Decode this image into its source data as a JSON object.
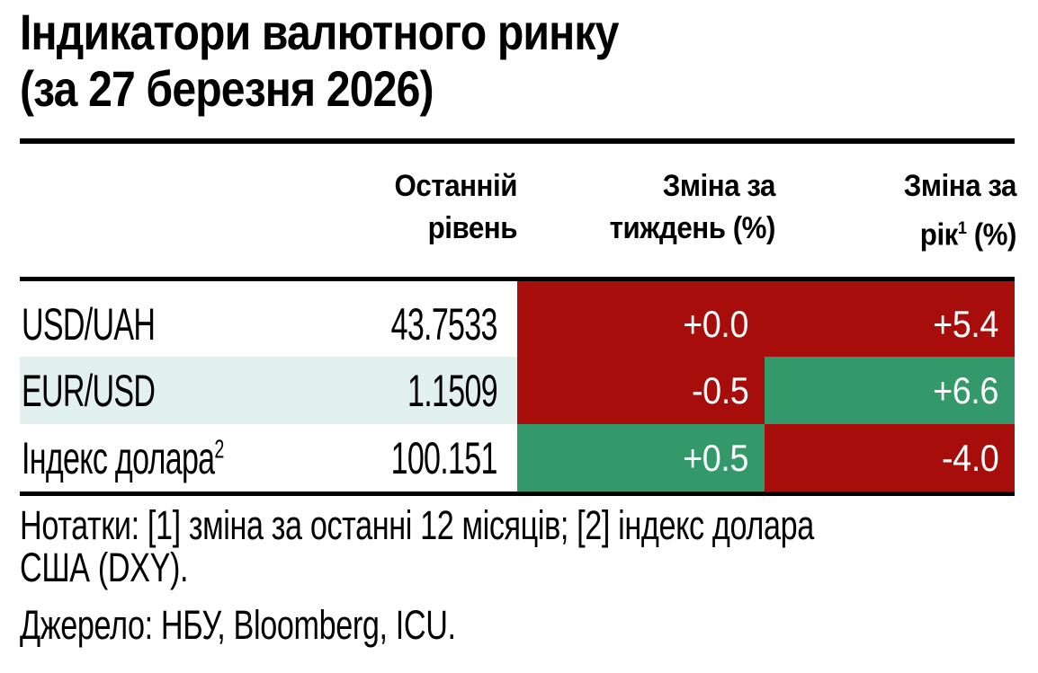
{
  "title": {
    "line1": "Індикатори валютного ринку",
    "line2": "(за 27 березня 2026)"
  },
  "header": {
    "level": {
      "line1": "Останній",
      "line2": "рівень"
    },
    "week": {
      "line1": "Зміна за",
      "line2": "тиждень (%)"
    },
    "year": {
      "line1": "Зміна за",
      "line2_base": "рік",
      "line2_sup": "1",
      "line2_rest": " (%)"
    }
  },
  "rows": [
    {
      "label": "USD/UAH",
      "label_sup": "",
      "level": "43.7533",
      "week": "+0.0",
      "year": "+5.4",
      "row_bg": "#ffffff",
      "week_bg": "#a60d0b",
      "year_bg": "#a60d0b"
    },
    {
      "label": "EUR/USD",
      "label_sup": "",
      "level": "1.1509",
      "week": "-0.5",
      "year": "+6.6",
      "row_bg": "#e3f1ee",
      "week_bg": "#a60d0b",
      "year_bg": "#34996a"
    },
    {
      "label": "Індекс долара",
      "label_sup": "2",
      "level": "100.151",
      "week": "+0.5",
      "year": "-4.0",
      "row_bg": "#ffffff",
      "week_bg": "#34996a",
      "year_bg": "#a60d0b"
    }
  ],
  "notes": {
    "line1": "Нотатки: [1] зміна за останні 12 місяців; [2] індекс долара",
    "line2": "США (DXY)."
  },
  "source": "Джерело: НБУ, Bloomberg, ICU.",
  "colors": {
    "negative_red": "#a60d0b",
    "positive_green": "#34996a",
    "highlight_row": "#e3f1ee",
    "rule_black": "#000000"
  },
  "chart_data": {
    "type": "table",
    "title": "Індикатори валютного ринку (за 27 березня 2026)",
    "columns": [
      "Останній рівень",
      "Зміна за тиждень (%)",
      "Зміна за рік [1] (%)"
    ],
    "rows": [
      {
        "indicator": "USD/UAH",
        "level": 43.7533,
        "week_change_pct": 0.0,
        "year_change_pct": 5.4
      },
      {
        "indicator": "EUR/USD",
        "level": 1.1509,
        "week_change_pct": -0.5,
        "year_change_pct": 6.6
      },
      {
        "indicator": "Індекс долара (DXY)",
        "level": 100.151,
        "week_change_pct": 0.5,
        "year_change_pct": -4.0
      }
    ],
    "notes": "Нотатки: [1] зміна за останні 12 місяців; [2] індекс долара США (DXY).",
    "source": "Джерело: НБУ, Bloomberg, ICU."
  }
}
